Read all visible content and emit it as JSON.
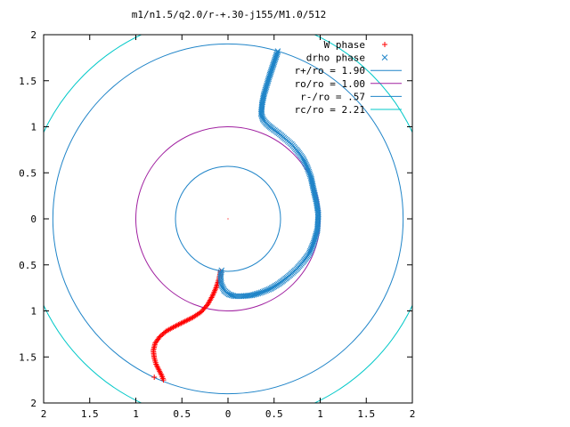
{
  "chart_data": {
    "type": "scatter",
    "title": "m1/n1.5/q2.0/r-+.30-j155/M1.0/512",
    "xlabel": "",
    "ylabel": "",
    "xlim": [
      -2,
      2
    ],
    "ylim": [
      -2,
      2
    ],
    "x_ticks": [
      -2,
      -1.5,
      -1,
      -0.5,
      0,
      0.5,
      1,
      1.5,
      2
    ],
    "y_ticks": [
      -2,
      -1.5,
      -1,
      -0.5,
      0,
      0.5,
      1,
      1.5,
      2
    ],
    "x_tick_labels": [
      "2",
      "1.5",
      "1",
      "0.5",
      "0",
      "0.5",
      "1",
      "1.5",
      "2"
    ],
    "y_tick_labels": [
      "2",
      "1.5",
      "1",
      "0.5",
      "0",
      "0.5",
      "1",
      "1.5",
      "2"
    ],
    "grid": false,
    "legend_position": "top-right",
    "circles": [
      {
        "label": "r+/ro = 1.90",
        "radius": 1.9,
        "color": "#1f84c8"
      },
      {
        "label": "ro/ro = 1.00",
        "radius": 1.0,
        "color": "#a020a0"
      },
      {
        "label": "r-/ro = .57",
        "radius": 0.57,
        "color": "#1f84c8"
      },
      {
        "label": "rc/ro = 2.21",
        "radius": 2.21,
        "color": "#00c8c8"
      }
    ],
    "series": [
      {
        "name": "W phase",
        "marker": "+",
        "color": "#ff0000",
        "points": [
          [
            -0.08,
            -0.57
          ],
          [
            -0.1,
            -0.66
          ],
          [
            -0.13,
            -0.75
          ],
          [
            -0.17,
            -0.84
          ],
          [
            -0.22,
            -0.93
          ],
          [
            -0.29,
            -1.01
          ],
          [
            -0.38,
            -1.07
          ],
          [
            -0.48,
            -1.12
          ],
          [
            -0.58,
            -1.17
          ],
          [
            -0.67,
            -1.22
          ],
          [
            -0.74,
            -1.28
          ],
          [
            -0.79,
            -1.35
          ],
          [
            -0.81,
            -1.43
          ],
          [
            -0.8,
            -1.51
          ],
          [
            -0.78,
            -1.58
          ],
          [
            -0.75,
            -1.64
          ],
          [
            -0.72,
            -1.7
          ],
          [
            -0.7,
            -1.75
          ],
          [
            -0.8,
            -1.72
          ]
        ]
      },
      {
        "name": "drho phase",
        "marker": "x",
        "color": "#1f84c8",
        "points": [
          [
            0.54,
            1.82
          ],
          [
            0.51,
            1.73
          ],
          [
            0.48,
            1.64
          ],
          [
            0.45,
            1.55
          ],
          [
            0.42,
            1.45
          ],
          [
            0.39,
            1.35
          ],
          [
            0.37,
            1.25
          ],
          [
            0.36,
            1.14
          ],
          [
            0.38,
            1.08
          ],
          [
            0.42,
            1.03
          ],
          [
            0.48,
            0.98
          ],
          [
            0.55,
            0.93
          ],
          [
            0.62,
            0.87
          ],
          [
            0.69,
            0.81
          ],
          [
            0.75,
            0.74
          ],
          [
            0.81,
            0.66
          ],
          [
            0.86,
            0.56
          ],
          [
            0.9,
            0.45
          ],
          [
            0.93,
            0.31
          ],
          [
            0.96,
            0.18
          ],
          [
            0.98,
            0.05
          ],
          [
            0.97,
            -0.12
          ],
          [
            0.93,
            -0.26
          ],
          [
            0.88,
            -0.38
          ],
          [
            0.82,
            -0.46
          ],
          [
            0.74,
            -0.55
          ],
          [
            0.65,
            -0.63
          ],
          [
            0.56,
            -0.7
          ],
          [
            0.46,
            -0.76
          ],
          [
            0.36,
            -0.8
          ],
          [
            0.26,
            -0.83
          ],
          [
            0.16,
            -0.84
          ],
          [
            0.07,
            -0.84
          ],
          [
            0.01,
            -0.82
          ],
          [
            -0.04,
            -0.78
          ],
          [
            -0.07,
            -0.72
          ],
          [
            -0.08,
            -0.66
          ],
          [
            -0.08,
            -0.6
          ],
          [
            -0.07,
            -0.56
          ]
        ]
      }
    ]
  }
}
